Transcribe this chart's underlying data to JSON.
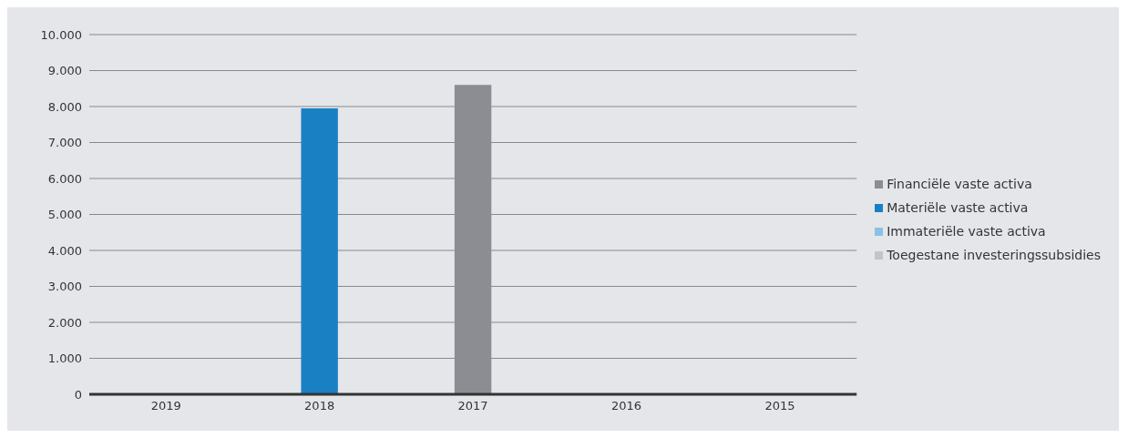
{
  "chart_data": {
    "type": "bar",
    "stacked": true,
    "categories": [
      "2019",
      "2018",
      "2017",
      "2016",
      "2015"
    ],
    "series": [
      {
        "name": "Financiële vaste activa",
        "color": "#8c8c93",
        "values": [
          0,
          0,
          8600,
          0,
          0
        ]
      },
      {
        "name": "Materiële vaste activa",
        "color": "#1a80c4",
        "values": [
          0,
          7950,
          0,
          0,
          0
        ]
      },
      {
        "name": "Immateriële vaste activa",
        "color": "#8cc0e6",
        "values": [
          0,
          0,
          0,
          0,
          0
        ]
      },
      {
        "name": "Toegestane investeringssubsidies",
        "color": "#c4c4c8",
        "values": [
          0,
          0,
          0,
          0,
          0
        ]
      }
    ],
    "ylim": [
      0,
      10000
    ],
    "yticks": [
      {
        "value": 0,
        "label": "0"
      },
      {
        "value": 1000,
        "label": "1.000"
      },
      {
        "value": 2000,
        "label": "2.000"
      },
      {
        "value": 3000,
        "label": "3.000"
      },
      {
        "value": 4000,
        "label": "4.000"
      },
      {
        "value": 5000,
        "label": "5.000"
      },
      {
        "value": 6000,
        "label": "6.000"
      },
      {
        "value": 7000,
        "label": "7.000"
      },
      {
        "value": 8000,
        "label": "8.000"
      },
      {
        "value": 9000,
        "label": "9.000"
      },
      {
        "value": 10000,
        "label": "10.000"
      }
    ],
    "grid": "y",
    "legend": "right"
  }
}
